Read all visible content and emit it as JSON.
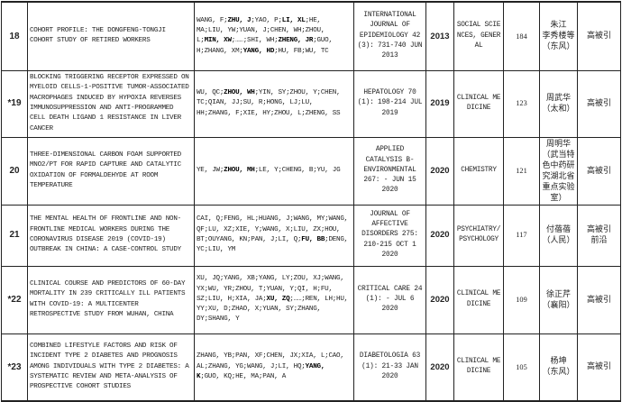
{
  "rows": [
    {
      "no": "18",
      "title": "COHORT PROFILE: THE DONGFENG-TONGJI COHORT STUDY OF RETIRED WORKERS",
      "authors": [
        [
          "WANG, F;",
          0
        ],
        [
          "ZHU, J",
          1
        ],
        [
          ";YAO, P;",
          0
        ],
        [
          "LI, XL",
          1
        ],
        [
          ";HE, MA;LIU, YW;YUAN, J;CHEN, WH;ZHOU, L;",
          0
        ],
        [
          "MIN, XW",
          1
        ],
        [
          ";……;SHI, WH;",
          0
        ],
        [
          "ZHENG, JR",
          1
        ],
        [
          ";GUO, H;ZHANG, XM;",
          0
        ],
        [
          "YANG, HD",
          1
        ],
        [
          ";HU, FB;WU, TC",
          0
        ]
      ],
      "journal": "INTERNATIONAL JOURNAL OF EPIDEMIOLOGY 42 (3): 731-740 JUN 2013",
      "year": "2013",
      "category": "SOCIAL SCIENCES, GENERAL",
      "citations": "184",
      "author_cn": "朱江\n李秀楼等\n（东风）",
      "tag": "高被引"
    },
    {
      "no": "*19",
      "title": "BLOCKING TRIGGERING RECEPTOR EXPRESSED ON MYELOID CELLS-1-POSITIVE TUMOR-ASSOCIATED MACROPHAGES INDUCED BY HYPOXIA REVERSES IMMUNOSUPPRESSION AND ANTI-PROGRAMMED CELL DEATH LIGAND 1 RESISTANCE IN LIVER CANCER",
      "authors": [
        [
          "WU, QC;",
          0
        ],
        [
          "ZHOU, WH",
          1
        ],
        [
          ";YIN, SY;ZHOU, Y;CHEN, TC;QIAN, JJ;SU, R;HONG, LJ;LU, HH;ZHANG, F;XIE, HY;ZHOU, L;ZHENG, SS",
          0
        ]
      ],
      "journal": "HEPATOLOGY 70 (1): 198-214 JUL 2019",
      "year": "2019",
      "category": "CLINICAL MEDICINE",
      "citations": "123",
      "author_cn": "周武华\n（太和）",
      "tag": "高被引"
    },
    {
      "no": "20",
      "title": "THREE-DIMENSIONAL CARBON FOAM SUPPORTED MNO2/PT FOR RAPID CAPTURE AND CATALYTIC OXIDATION OF FORMALDEHYDE AT ROOM TEMPERATURE",
      "authors": [
        [
          "YE, JW;",
          0
        ],
        [
          "ZHOU, MH",
          1
        ],
        [
          ";LE, Y;CHENG, B;YU, JG",
          0
        ]
      ],
      "journal": "APPLIED CATALYSIS B-ENVIRONMENTAL 267: - JUN 15 2020",
      "year": "2020",
      "category": "CHEMISTRY",
      "citations": "121",
      "author_cn": "周明华\n（武当特色中药研究湖北省重点实验室）",
      "tag": "高被引"
    },
    {
      "no": "21",
      "title": "THE MENTAL HEALTH OF FRONTLINE AND NON-FRONTLINE MEDICAL WORKERS DURING THE CORONAVIRUS DISEASE 2019 (COVID-19) OUTBREAK IN CHINA: A CASE-CONTROL STUDY",
      "authors": [
        [
          "CAI, Q;FENG, HL;HUANG, J;WANG, MY;WANG, QF;LU, XZ;XIE, Y;WANG, X;LIU, ZX;HOU, BT;OUYANG, KN;PAN, J;LI, Q;",
          0
        ],
        [
          "FU, BB",
          1
        ],
        [
          ";DENG, YC;LIU, YM",
          0
        ]
      ],
      "journal": "JOURNAL OF AFFECTIVE DISORDERS 275: 210-215 OCT 1 2020",
      "year": "2020",
      "category": "PSYCHIATRY/PSYCHOLOGY",
      "citations": "117",
      "author_cn": "付蓓蓓\n（人民）",
      "tag": "高被引\n前沿"
    },
    {
      "no": "*22",
      "title": "CLINICAL COURSE AND PREDICTORS OF 60-DAY MORTALITY IN 239 CRITICALLY ILL PATIENTS WITH COVID-19: A MULTICENTER RETROSPECTIVE STUDY FROM WUHAN, CHINA",
      "authors": [
        [
          "XU, JQ;YANG, XB;YANG, LY;ZOU, XJ;WANG, YX;WU, YR;ZHOU, T;YUAN, Y;QI, H;FU, SZ;LIU, H;XIA, JA;",
          0
        ],
        [
          "XU, ZQ",
          1
        ],
        [
          ";……;REN, LH;HU, YY;XU, D;ZHAO, X;YUAN, SY;ZHANG, DY;SHANG, Y",
          0
        ]
      ],
      "journal": "CRITICAL CARE 24 (1): - JUL 6 2020",
      "year": "2020",
      "category": "CLINICAL MEDICINE",
      "citations": "109",
      "author_cn": "徐正芹\n（襄阳）",
      "tag": "高被引"
    },
    {
      "no": "*23",
      "title": "COMBINED LIFESTYLE FACTORS AND RISK OF INCIDENT TYPE 2 DIABETES AND PROGNOSIS AMONG INDIVIDUALS WITH TYPE 2 DIABETES: A SYSTEMATIC REVIEW AND META-ANALYSIS OF PROSPECTIVE COHORT STUDIES",
      "authors": [
        [
          "ZHANG, YB;PAN, XF;CHEN, JX;XIA, L;CAO, AL;ZHANG, YG;WANG, J;LI, HQ;",
          0
        ],
        [
          "YANG, K",
          1
        ],
        [
          ";GUO, KQ;HE, MA;PAN, A",
          0
        ]
      ],
      "journal": "DIABETOLOGIA 63 (1): 21-33 JAN 2020",
      "year": "2020",
      "category": "CLINICAL MEDICINE",
      "citations": "105",
      "author_cn": "杨坤\n（东风）",
      "tag": "高被引"
    }
  ]
}
